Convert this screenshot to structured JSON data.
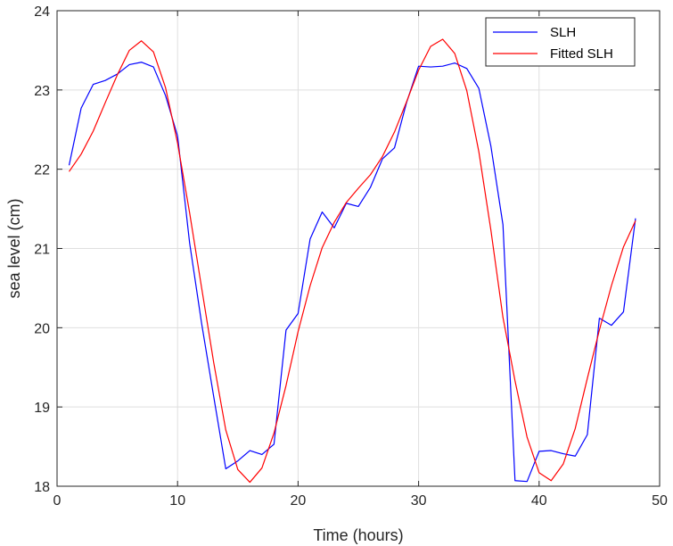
{
  "chart_data": {
    "type": "line",
    "title": "",
    "xlabel": "Time (hours)",
    "ylabel": "sea level (cm)",
    "xlim": [
      0,
      50
    ],
    "ylim": [
      18,
      24
    ],
    "xticks": [
      0,
      10,
      20,
      30,
      40,
      50
    ],
    "yticks": [
      18,
      19,
      20,
      21,
      22,
      23,
      24
    ],
    "grid": true,
    "legend_position": "top-right",
    "series": [
      {
        "name": "SLH",
        "color": "#0000ff",
        "x": [
          1,
          2,
          3,
          4,
          5,
          6,
          7,
          8,
          9,
          10,
          11,
          12,
          13,
          14,
          15,
          16,
          17,
          18,
          19,
          20,
          21,
          22,
          23,
          24,
          25,
          26,
          27,
          28,
          29,
          30,
          31,
          32,
          33,
          34,
          35,
          36,
          37,
          38,
          39,
          40,
          41,
          42,
          43,
          44,
          45,
          46,
          47,
          48
        ],
        "y": [
          22.05,
          22.77,
          23.07,
          23.12,
          23.2,
          23.32,
          23.35,
          23.29,
          22.93,
          22.42,
          21.07,
          20.05,
          19.13,
          18.22,
          18.32,
          18.45,
          18.4,
          18.53,
          19.97,
          20.18,
          21.12,
          21.46,
          21.26,
          21.57,
          21.53,
          21.77,
          22.13,
          22.27,
          22.84,
          23.3,
          23.29,
          23.3,
          23.34,
          23.27,
          23.02,
          22.29,
          21.3,
          18.07,
          18.06,
          18.44,
          18.45,
          18.41,
          18.38,
          18.65,
          20.12,
          20.03,
          20.2,
          21.38
        ]
      },
      {
        "name": "Fitted SLH",
        "color": "#ff0000",
        "x": [
          1,
          2,
          3,
          4,
          5,
          6,
          7,
          8,
          9,
          10,
          11,
          12,
          13,
          14,
          15,
          16,
          17,
          18,
          19,
          20,
          21,
          22,
          23,
          24,
          25,
          26,
          27,
          28,
          29,
          30,
          31,
          32,
          33,
          34,
          35,
          36,
          37,
          38,
          39,
          40,
          41,
          42,
          43,
          44,
          45,
          46,
          47,
          48
        ],
        "y": [
          21.97,
          22.19,
          22.48,
          22.84,
          23.19,
          23.5,
          23.62,
          23.48,
          23.03,
          22.33,
          21.45,
          20.5,
          19.56,
          18.71,
          18.21,
          18.05,
          18.23,
          18.67,
          19.27,
          19.95,
          20.53,
          21.01,
          21.33,
          21.58,
          21.76,
          21.93,
          22.16,
          22.47,
          22.85,
          23.25,
          23.55,
          23.64,
          23.46,
          22.99,
          22.22,
          21.23,
          20.13,
          19.33,
          18.62,
          18.17,
          18.07,
          18.28,
          18.73,
          19.36,
          19.97,
          20.53,
          21.02,
          21.35
        ]
      }
    ]
  }
}
